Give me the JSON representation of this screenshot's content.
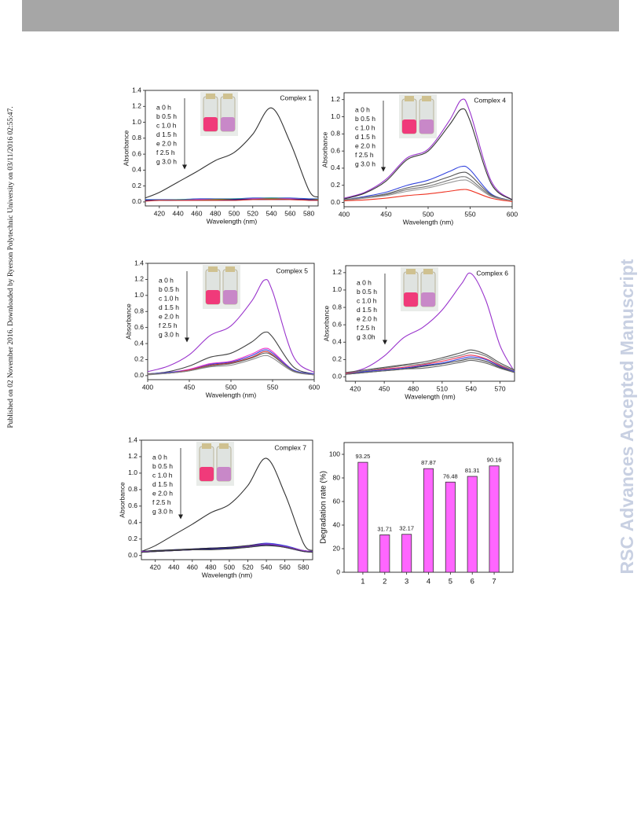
{
  "side_text": "Published on 02 November 2016. Downloaded by Ryerson Polytechnic University on 03/11/2016 02:55:47.",
  "watermark": "RSC Advances Accepted Manuscript",
  "chart_data": [
    {
      "type": "line",
      "title": "Complex 1",
      "xlabel": "Wavelength (nm)",
      "ylabel": "Absorbance",
      "x": [
        405,
        420,
        440,
        460,
        480,
        500,
        520,
        540,
        560,
        580,
        590
      ],
      "xlim": [
        405,
        590
      ],
      "xticks": [
        420,
        440,
        460,
        480,
        500,
        520,
        540,
        560,
        580
      ],
      "ylim": [
        -0.05,
        1.4
      ],
      "yticks": [
        {
          "value": 0,
          "label": "0.0"
        },
        0.2,
        0.4,
        0.6,
        0.8,
        {
          "value": 1,
          "label": "1.0"
        },
        1.2,
        1.4
      ],
      "series": [
        {
          "name": "a 0 h",
          "color": "#333333",
          "values": [
            0.05,
            0.12,
            0.25,
            0.38,
            0.52,
            0.62,
            0.85,
            1.18,
            0.75,
            0.15,
            0.06
          ]
        },
        {
          "name": "b 0.5 h",
          "color": "#3366cc",
          "values": [
            0.03,
            0.03,
            0.03,
            0.04,
            0.04,
            0.04,
            0.05,
            0.05,
            0.05,
            0.04,
            0.04
          ]
        },
        {
          "name": "c 1.0 h",
          "color": "#339999",
          "values": [
            0.02,
            0.02,
            0.03,
            0.03,
            0.03,
            0.04,
            0.04,
            0.05,
            0.04,
            0.03,
            0.03
          ]
        },
        {
          "name": "d 1.5 h",
          "color": "#cc33cc",
          "values": [
            0.02,
            0.02,
            0.02,
            0.03,
            0.03,
            0.03,
            0.04,
            0.04,
            0.04,
            0.03,
            0.03
          ]
        },
        {
          "name": "e 2.0 h",
          "color": "#888800",
          "values": [
            0.02,
            0.02,
            0.02,
            0.02,
            0.03,
            0.03,
            0.03,
            0.04,
            0.03,
            0.03,
            0.03
          ]
        },
        {
          "name": "f 2.5 h",
          "color": "#000088",
          "values": [
            0.02,
            0.02,
            0.02,
            0.02,
            0.02,
            0.03,
            0.03,
            0.03,
            0.03,
            0.03,
            0.02
          ]
        },
        {
          "name": "g 3.0 h",
          "color": "#cc3333",
          "values": [
            0.01,
            0.02,
            0.02,
            0.02,
            0.02,
            0.02,
            0.03,
            0.03,
            0.03,
            0.02,
            0.02
          ]
        }
      ]
    },
    {
      "type": "line",
      "title": "Complex 4",
      "xlabel": "Wavelength (nm)",
      "ylabel": "Absorbance",
      "x": [
        400,
        425,
        450,
        475,
        500,
        525,
        540,
        550,
        575,
        600
      ],
      "xlim": [
        400,
        600
      ],
      "xticks": [
        400,
        450,
        500,
        550,
        600
      ],
      "ylim": [
        -0.05,
        1.28
      ],
      "yticks": [
        {
          "value": 0,
          "label": "0.0"
        },
        0.2,
        0.4,
        0.6,
        0.8,
        {
          "value": 1,
          "label": "1.0"
        },
        1.2
      ],
      "series": [
        {
          "name": "a 0 h",
          "color": "#9933cc",
          "values": [
            0.05,
            0.12,
            0.27,
            0.52,
            0.62,
            0.95,
            1.2,
            1.05,
            0.25,
            0.03
          ]
        },
        {
          "name": "b 0.5 h",
          "color": "#333333",
          "values": [
            0.04,
            0.11,
            0.25,
            0.5,
            0.6,
            0.9,
            1.09,
            0.95,
            0.22,
            0.03
          ]
        },
        {
          "name": "c 1.0 h",
          "color": "#3344dd",
          "values": [
            0.03,
            0.07,
            0.12,
            0.2,
            0.26,
            0.36,
            0.42,
            0.38,
            0.1,
            0.02
          ]
        },
        {
          "name": "d 1.5 h",
          "color": "#555555",
          "values": [
            0.03,
            0.06,
            0.1,
            0.17,
            0.22,
            0.3,
            0.35,
            0.32,
            0.09,
            0.02
          ]
        },
        {
          "name": "e 2.0 h",
          "color": "#777777",
          "values": [
            0.03,
            0.06,
            0.09,
            0.15,
            0.19,
            0.26,
            0.3,
            0.27,
            0.08,
            0.02
          ]
        },
        {
          "name": "f 2.5 h",
          "color": "#999999",
          "values": [
            0.02,
            0.05,
            0.08,
            0.13,
            0.17,
            0.23,
            0.26,
            0.24,
            0.07,
            0.02
          ]
        },
        {
          "name": "g 3.0 h",
          "color": "#ee3322",
          "values": [
            0.02,
            0.03,
            0.05,
            0.08,
            0.1,
            0.13,
            0.15,
            0.14,
            0.05,
            0.01
          ]
        }
      ]
    },
    {
      "type": "line",
      "title": "Complex 5",
      "xlabel": "Wavelength (nm)",
      "ylabel": "Absorbance",
      "x": [
        400,
        425,
        450,
        475,
        500,
        525,
        540,
        550,
        575,
        600
      ],
      "xlim": [
        400,
        600
      ],
      "xticks": [
        400,
        450,
        500,
        550,
        600
      ],
      "ylim": [
        -0.05,
        1.4
      ],
      "yticks": [
        {
          "value": 0,
          "label": "0.0"
        },
        0.2,
        0.4,
        0.6,
        0.8,
        {
          "value": 1,
          "label": "1.0"
        },
        1.2,
        1.4
      ],
      "series": [
        {
          "name": "a 0 h",
          "color": "#9933cc",
          "values": [
            0.05,
            0.12,
            0.26,
            0.5,
            0.62,
            0.93,
            1.19,
            1.05,
            0.24,
            0.04
          ]
        },
        {
          "name": "b 0.5 h",
          "color": "#444444",
          "values": [
            0.02,
            0.05,
            0.12,
            0.23,
            0.28,
            0.42,
            0.54,
            0.48,
            0.11,
            0.02
          ]
        },
        {
          "name": "c 1.0 h",
          "color": "#ee33cc",
          "values": [
            0.02,
            0.04,
            0.08,
            0.15,
            0.18,
            0.27,
            0.34,
            0.3,
            0.07,
            0.02
          ]
        },
        {
          "name": "d 1.5 h",
          "color": "#3344dd",
          "values": [
            0.02,
            0.04,
            0.07,
            0.14,
            0.17,
            0.25,
            0.32,
            0.28,
            0.07,
            0.02
          ]
        },
        {
          "name": "e 2.0 h",
          "color": "#cc3333",
          "values": [
            0.02,
            0.03,
            0.07,
            0.13,
            0.16,
            0.23,
            0.3,
            0.26,
            0.06,
            0.01
          ]
        },
        {
          "name": "f 2.5 h",
          "color": "#666666",
          "values": [
            0.02,
            0.03,
            0.06,
            0.12,
            0.15,
            0.22,
            0.28,
            0.25,
            0.06,
            0.01
          ]
        },
        {
          "name": "g 3.0 h",
          "color": "#888888",
          "values": [
            0.01,
            0.03,
            0.06,
            0.11,
            0.13,
            0.2,
            0.25,
            0.22,
            0.05,
            0.01
          ]
        }
      ]
    },
    {
      "type": "line",
      "title": "Complex 6",
      "xlabel": "Wavelength (nm)",
      "ylabel": "Absorbance",
      "x": [
        410,
        430,
        450,
        470,
        490,
        510,
        530,
        540,
        555,
        570,
        585
      ],
      "xlim": [
        410,
        585
      ],
      "xticks": [
        420,
        450,
        480,
        510,
        540,
        570
      ],
      "ylim": [
        -0.05,
        1.28
      ],
      "yticks": [
        {
          "value": 0,
          "label": "0.0"
        },
        0.2,
        0.4,
        0.6,
        0.8,
        {
          "value": 1,
          "label": "1.0"
        },
        1.2
      ],
      "series": [
        {
          "name": "a 0 h",
          "color": "#9933cc",
          "values": [
            0.04,
            0.1,
            0.24,
            0.45,
            0.57,
            0.77,
            1.07,
            1.19,
            0.89,
            0.36,
            0.06
          ]
        },
        {
          "name": "b 0.5 h",
          "color": "#555555",
          "values": [
            0.05,
            0.08,
            0.11,
            0.14,
            0.17,
            0.22,
            0.28,
            0.31,
            0.26,
            0.16,
            0.08
          ]
        },
        {
          "name": "c 1.0 h",
          "color": "#777777",
          "values": [
            0.04,
            0.07,
            0.1,
            0.13,
            0.15,
            0.2,
            0.25,
            0.28,
            0.24,
            0.14,
            0.07
          ]
        },
        {
          "name": "d 1.5 h",
          "color": "#ee3355",
          "values": [
            0.04,
            0.06,
            0.09,
            0.11,
            0.14,
            0.18,
            0.23,
            0.25,
            0.21,
            0.13,
            0.06
          ]
        },
        {
          "name": "e 2.0 h",
          "color": "#3344dd",
          "values": [
            0.03,
            0.06,
            0.08,
            0.1,
            0.13,
            0.16,
            0.21,
            0.23,
            0.2,
            0.12,
            0.06
          ]
        },
        {
          "name": "f 2.5 h",
          "color": "#444444",
          "values": [
            0.03,
            0.05,
            0.07,
            0.09,
            0.12,
            0.15,
            0.19,
            0.21,
            0.18,
            0.11,
            0.05
          ]
        },
        {
          "name": "g 3.0h",
          "color": "#666666",
          "values": [
            0.03,
            0.05,
            0.07,
            0.09,
            0.1,
            0.13,
            0.17,
            0.19,
            0.16,
            0.1,
            0.05
          ]
        }
      ]
    },
    {
      "type": "line",
      "title": "Complex 7",
      "xlabel": "Wavelength (nm)",
      "ylabel": "Absorbance",
      "x": [
        405,
        420,
        440,
        460,
        480,
        500,
        520,
        540,
        560,
        580,
        590
      ],
      "xlim": [
        405,
        590
      ],
      "xticks": [
        420,
        440,
        460,
        480,
        500,
        520,
        540,
        560,
        580
      ],
      "ylim": [
        -0.05,
        1.4
      ],
      "yticks": [
        {
          "value": 0,
          "label": "0.0"
        },
        0.2,
        0.4,
        0.6,
        0.8,
        {
          "value": 1,
          "label": "1.0"
        },
        1.2,
        1.4
      ],
      "series": [
        {
          "name": "a 0 h",
          "color": "#333333",
          "values": [
            0.05,
            0.12,
            0.25,
            0.38,
            0.52,
            0.62,
            0.85,
            1.18,
            0.75,
            0.15,
            0.06
          ]
        },
        {
          "name": "b 0.5 h",
          "color": "#3344dd",
          "values": [
            0.05,
            0.06,
            0.07,
            0.08,
            0.09,
            0.1,
            0.12,
            0.15,
            0.12,
            0.06,
            0.05
          ]
        },
        {
          "name": "c 1.0 h",
          "color": "#222222",
          "values": [
            0.05,
            0.06,
            0.07,
            0.08,
            0.09,
            0.1,
            0.12,
            0.14,
            0.11,
            0.06,
            0.05
          ]
        },
        {
          "name": "d 1.5 h",
          "color": "#9933cc",
          "values": [
            0.05,
            0.05,
            0.06,
            0.07,
            0.08,
            0.09,
            0.11,
            0.14,
            0.11,
            0.06,
            0.05
          ]
        },
        {
          "name": "e 2.0 h",
          "color": "#6633aa",
          "values": [
            0.04,
            0.05,
            0.06,
            0.07,
            0.08,
            0.09,
            0.11,
            0.13,
            0.1,
            0.05,
            0.05
          ]
        },
        {
          "name": "f 2.5 h",
          "color": "#222288",
          "values": [
            0.04,
            0.05,
            0.06,
            0.07,
            0.08,
            0.09,
            0.1,
            0.13,
            0.1,
            0.05,
            0.04
          ]
        },
        {
          "name": "g 3.0 h",
          "color": "#444444",
          "values": [
            0.04,
            0.05,
            0.06,
            0.07,
            0.07,
            0.08,
            0.1,
            0.12,
            0.1,
            0.05,
            0.04
          ]
        }
      ]
    },
    {
      "type": "bar",
      "ylabel": "Degradation rate (%)",
      "categories": [
        "1",
        "2",
        "3",
        "4",
        "5",
        "6",
        "7"
      ],
      "values": [
        93.25,
        31.71,
        32.17,
        87.87,
        76.48,
        81.31,
        90.16
      ],
      "color": "#ff66ff",
      "ylim": [
        0,
        110
      ],
      "yticks": [
        0,
        20,
        40,
        60,
        80,
        100
      ]
    }
  ]
}
